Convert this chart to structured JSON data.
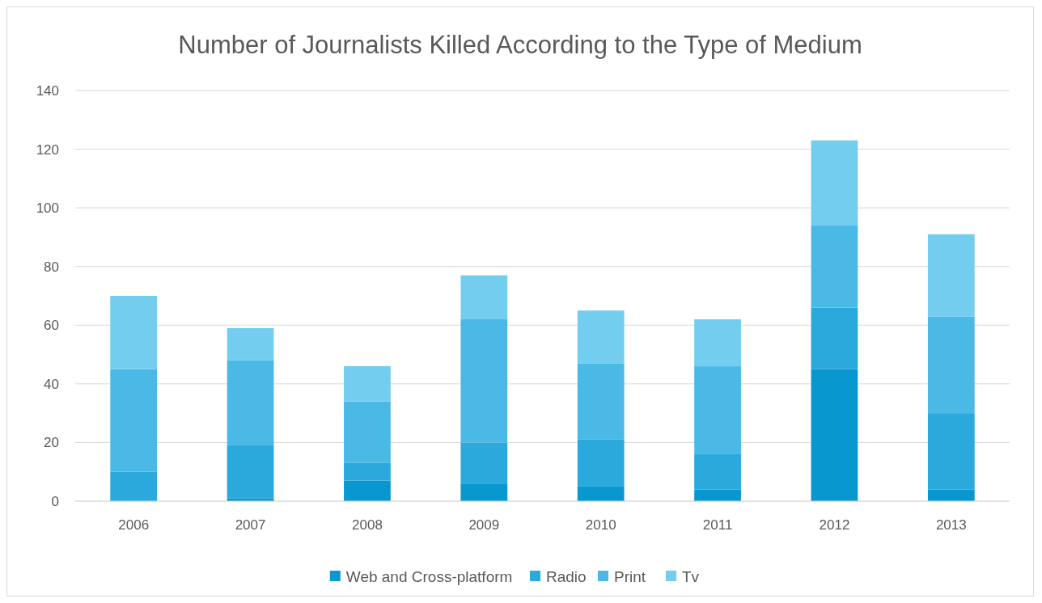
{
  "chart_data": {
    "type": "bar",
    "stacked": true,
    "title": "Number of Journalists Killed According to the Type of Medium",
    "categories": [
      "2006",
      "2007",
      "2008",
      "2009",
      "2010",
      "2011",
      "2012",
      "2013"
    ],
    "series": [
      {
        "name": "Web and Cross-platform",
        "color": "#0997cf",
        "values": [
          0,
          1,
          7,
          6,
          5,
          4,
          45,
          4
        ]
      },
      {
        "name": "Radio",
        "color": "#29a9dc",
        "values": [
          10,
          18,
          6,
          14,
          16,
          12,
          21,
          26
        ]
      },
      {
        "name": "Print",
        "color": "#4bb9e6",
        "values": [
          35,
          29,
          21,
          42,
          26,
          30,
          28,
          33
        ]
      },
      {
        "name": "Tv",
        "color": "#73cdef",
        "values": [
          25,
          11,
          12,
          15,
          18,
          16,
          29,
          28
        ]
      }
    ],
    "ylim": [
      0,
      140
    ],
    "yticks": [
      0,
      20,
      40,
      60,
      80,
      100,
      120,
      140
    ],
    "grid": "y",
    "legend": "bottom"
  }
}
